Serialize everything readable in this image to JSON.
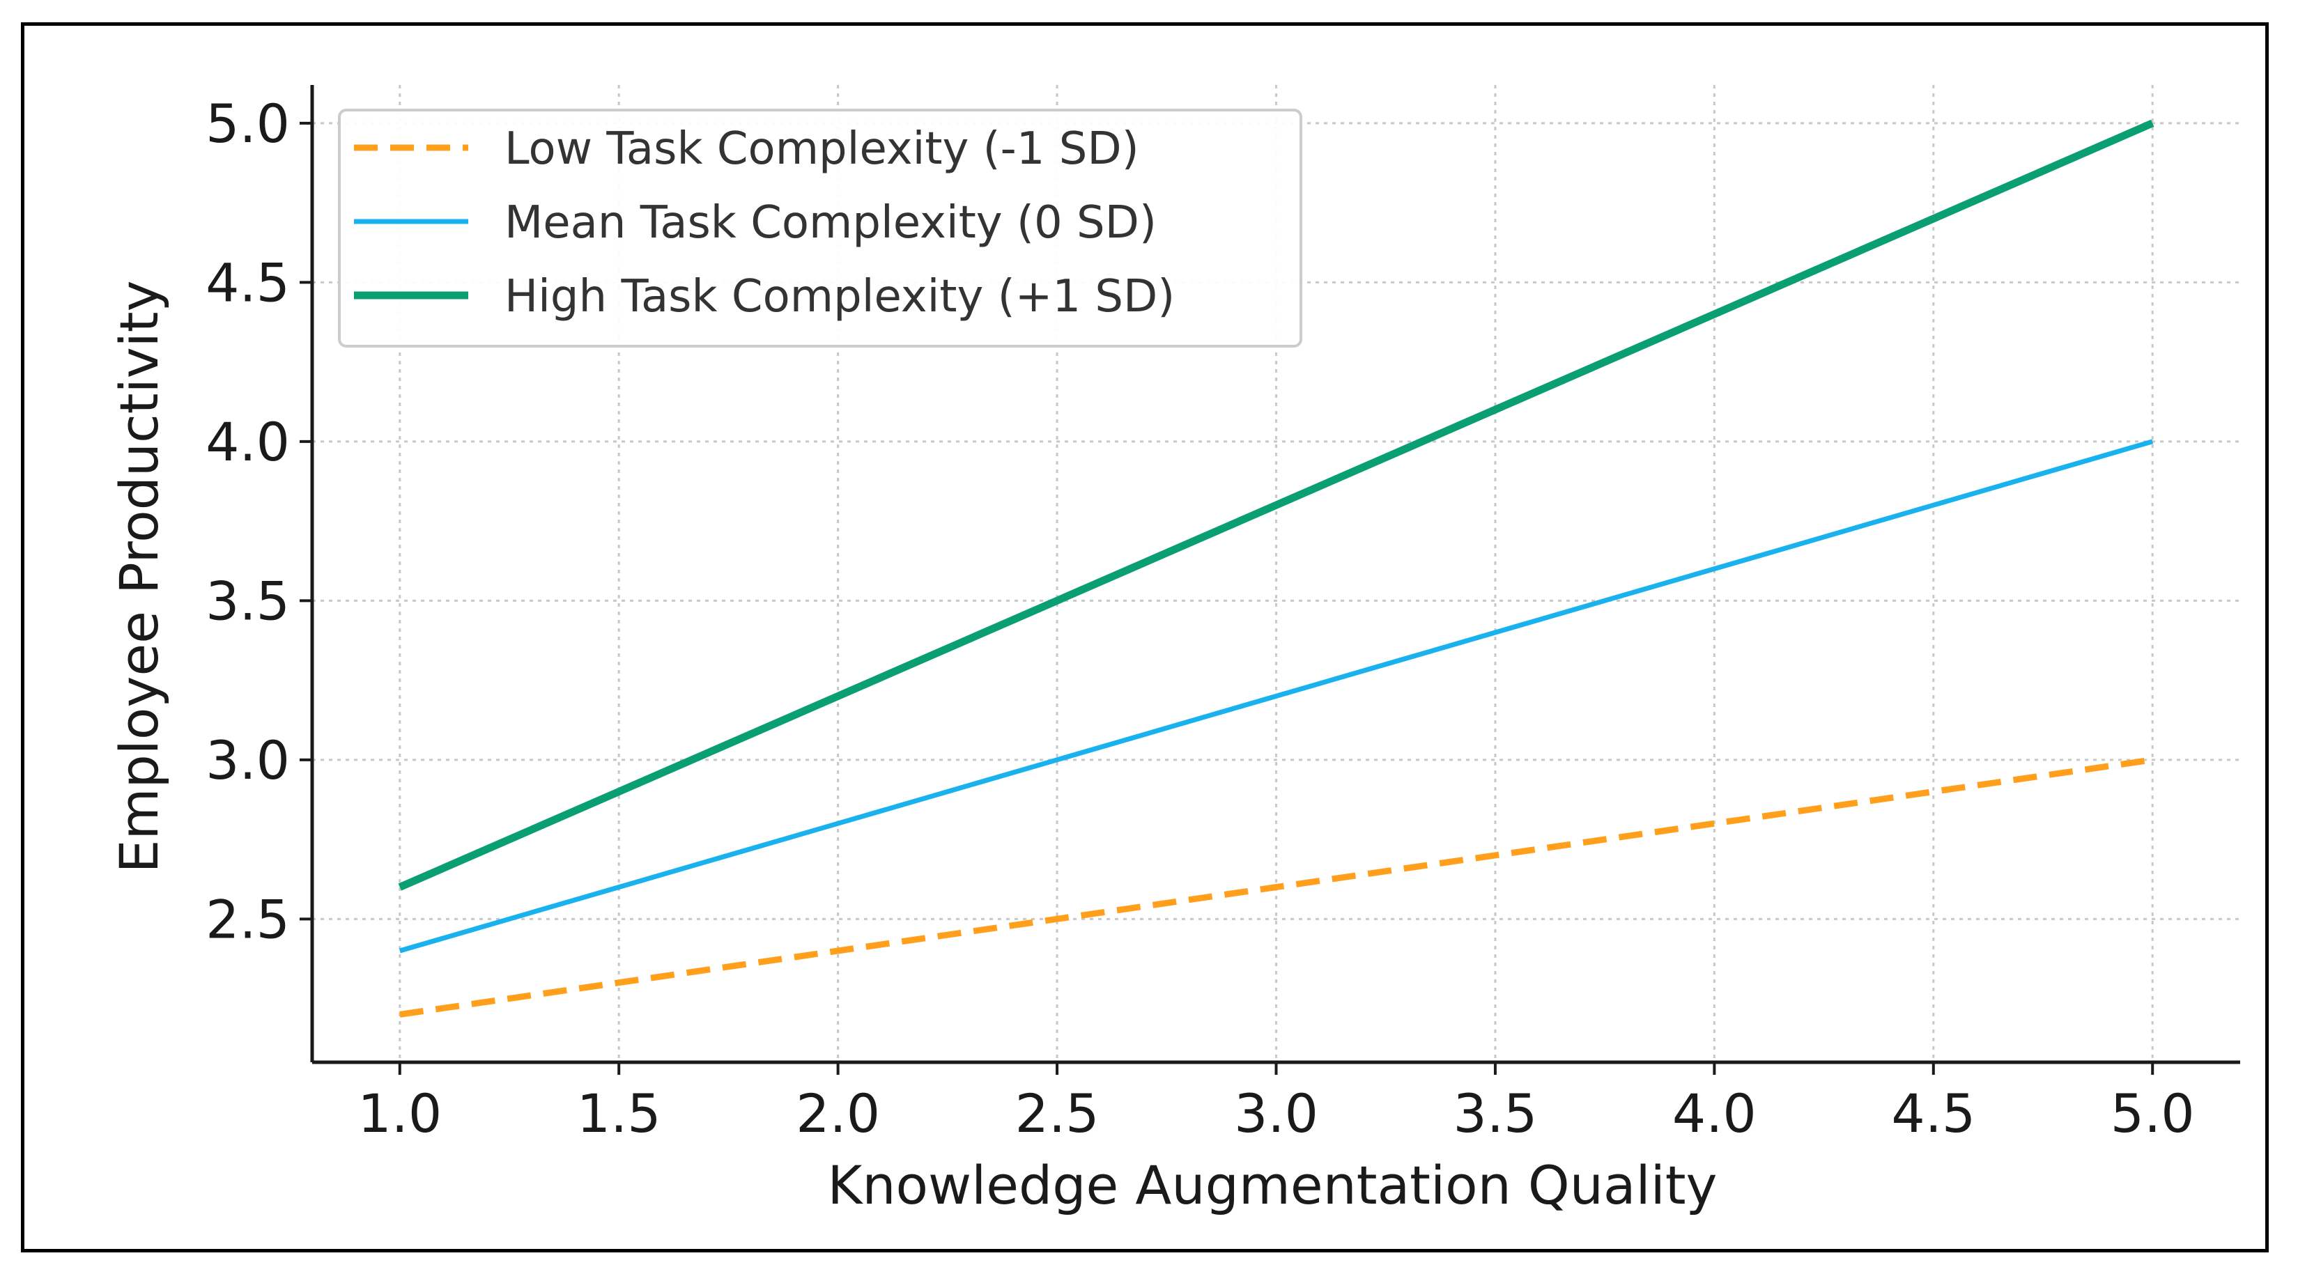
{
  "chart_data": {
    "type": "line",
    "title": "",
    "xlabel": "Knowledge Augmentation Quality",
    "ylabel": "Employee Productivity",
    "xlim": [
      0.8,
      5.2
    ],
    "ylim": [
      2.05,
      5.12
    ],
    "x_ticks": [
      1.0,
      1.5,
      2.0,
      2.5,
      3.0,
      3.5,
      4.0,
      4.5,
      5.0
    ],
    "x_tick_labels": [
      "1.0",
      "1.5",
      "2.0",
      "2.5",
      "3.0",
      "3.5",
      "4.0",
      "4.5",
      "5.0"
    ],
    "y_ticks": [
      2.5,
      3.0,
      3.5,
      4.0,
      4.5,
      5.0
    ],
    "y_tick_labels": [
      "2.5",
      "3.0",
      "3.5",
      "4.0",
      "4.5",
      "5.0"
    ],
    "grid": true,
    "legend_position": "top-left",
    "x": [
      1.0,
      1.5,
      2.0,
      2.5,
      3.0,
      3.5,
      4.0,
      4.5,
      5.0
    ],
    "series": [
      {
        "name": "Low Task Complexity (-1 SD)",
        "values": [
          2.2,
          2.3,
          2.4,
          2.5,
          2.6,
          2.7,
          2.8,
          2.9,
          3.0
        ],
        "color": "#ff9f1c",
        "style": "dashed"
      },
      {
        "name": "Mean Task Complexity (0 SD)",
        "values": [
          2.4,
          2.6,
          2.8,
          3.0,
          3.2,
          3.4,
          3.6,
          3.8,
          4.0
        ],
        "color": "#1ab2ee",
        "style": "solid"
      },
      {
        "name": "High Task Complexity (+1 SD)",
        "values": [
          2.6,
          2.9,
          3.2,
          3.5,
          3.8,
          4.1,
          4.4,
          4.7,
          5.0
        ],
        "color": "#0a9f73",
        "style": "solid-thick"
      }
    ]
  }
}
